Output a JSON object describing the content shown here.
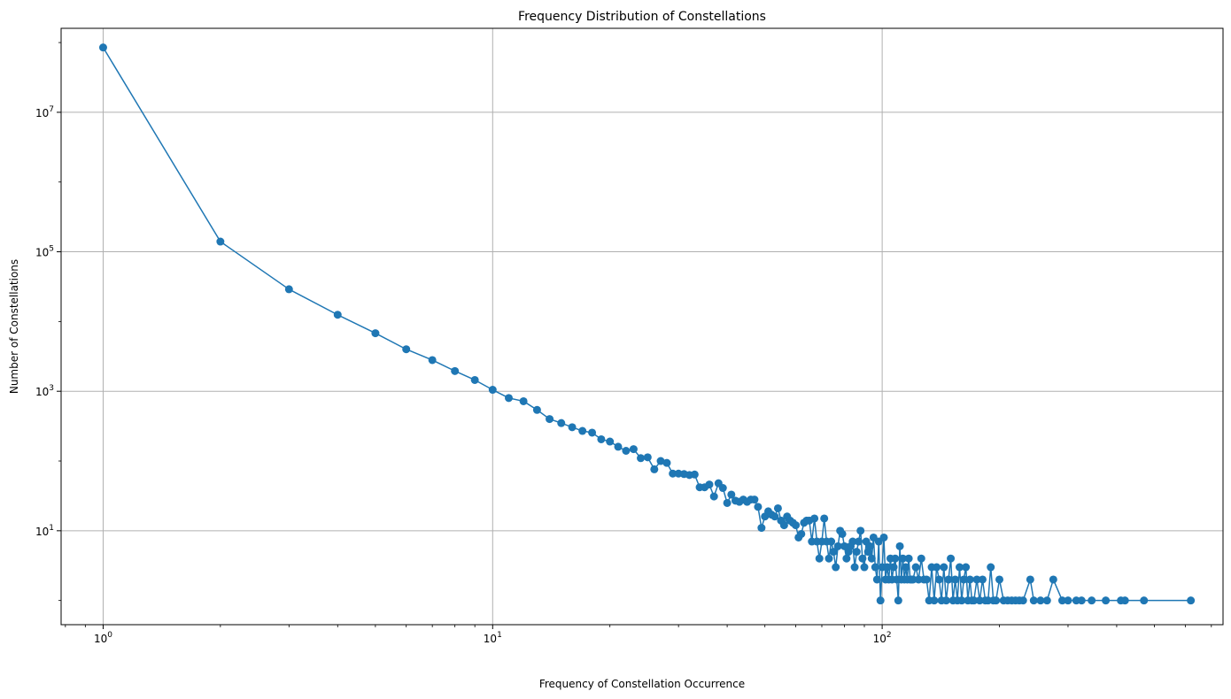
{
  "chart_data": {
    "type": "line",
    "title": "Frequency Distribution of Constellations",
    "xlabel": "Frequency of Constellation Occurrence",
    "ylabel": "Number of Constellations",
    "x_scale": "log",
    "y_scale": "log",
    "xlim": [
      0.78,
      750
    ],
    "ylim": [
      0.45,
      160000000
    ],
    "grid": true,
    "x_ticks": [
      {
        "value": 1,
        "base": "10",
        "exp": "0"
      },
      {
        "value": 10,
        "base": "10",
        "exp": "1"
      },
      {
        "value": 100,
        "base": "10",
        "exp": "2"
      }
    ],
    "y_ticks": [
      {
        "value": 10,
        "base": "10",
        "exp": "1"
      },
      {
        "value": 1000,
        "base": "10",
        "exp": "3"
      },
      {
        "value": 100000,
        "base": "10",
        "exp": "5"
      },
      {
        "value": 10000000,
        "base": "10",
        "exp": "7"
      }
    ],
    "colors": {
      "series": "#1f77b4",
      "grid": "#b0b0b0",
      "axes": "#000000"
    },
    "series": [
      {
        "marker": "circle",
        "points": [
          [
            1,
            85000000
          ],
          [
            2,
            140000
          ],
          [
            3,
            29000
          ],
          [
            4,
            12500
          ],
          [
            5,
            6800
          ],
          [
            6,
            4000
          ],
          [
            7,
            2800
          ],
          [
            8,
            1950
          ],
          [
            9,
            1450
          ],
          [
            10,
            1050
          ],
          [
            11,
            800
          ],
          [
            12,
            720
          ],
          [
            13,
            540
          ],
          [
            14,
            400
          ],
          [
            15,
            350
          ],
          [
            16,
            305
          ],
          [
            17,
            270
          ],
          [
            18,
            255
          ],
          [
            19,
            205
          ],
          [
            20,
            190
          ],
          [
            21,
            160
          ],
          [
            22,
            140
          ],
          [
            23,
            148
          ],
          [
            24,
            110
          ],
          [
            25,
            113
          ],
          [
            26,
            76
          ],
          [
            27,
            100
          ],
          [
            28,
            94
          ],
          [
            29,
            66
          ],
          [
            30,
            66
          ],
          [
            31,
            65
          ],
          [
            32,
            63
          ],
          [
            33,
            64
          ],
          [
            34,
            42
          ],
          [
            35,
            42
          ],
          [
            36,
            46
          ],
          [
            37,
            31
          ],
          [
            38,
            48
          ],
          [
            39,
            41
          ],
          [
            40,
            25
          ],
          [
            41,
            33
          ],
          [
            42,
            27
          ],
          [
            43,
            26
          ],
          [
            44,
            28
          ],
          [
            45,
            26
          ],
          [
            46,
            28
          ],
          [
            47,
            28
          ],
          [
            48,
            22
          ],
          [
            49,
            11
          ],
          [
            50,
            16
          ],
          [
            51,
            19
          ],
          [
            52,
            17
          ],
          [
            53,
            16
          ],
          [
            54,
            21
          ],
          [
            55,
            14
          ],
          [
            56,
            12
          ],
          [
            57,
            16
          ],
          [
            58,
            14
          ],
          [
            59,
            13
          ],
          [
            60,
            12
          ],
          [
            61,
            8
          ],
          [
            62,
            9
          ],
          [
            63,
            13
          ],
          [
            64,
            14
          ],
          [
            65,
            14
          ],
          [
            66,
            7
          ],
          [
            67,
            15
          ],
          [
            68,
            7
          ],
          [
            69,
            4
          ],
          [
            70,
            7
          ],
          [
            71,
            15
          ],
          [
            72,
            7
          ],
          [
            73,
            4
          ],
          [
            74,
            7
          ],
          [
            75,
            5
          ],
          [
            76,
            3
          ],
          [
            77,
            6
          ],
          [
            78,
            10
          ],
          [
            79,
            9
          ],
          [
            80,
            6
          ],
          [
            81,
            4
          ],
          [
            82,
            5
          ],
          [
            83,
            6
          ],
          [
            84,
            7
          ],
          [
            85,
            3
          ],
          [
            86,
            5
          ],
          [
            87,
            7
          ],
          [
            88,
            10
          ],
          [
            89,
            4
          ],
          [
            90,
            3
          ],
          [
            91,
            7
          ],
          [
            92,
            5
          ],
          [
            93,
            6
          ],
          [
            94,
            4
          ],
          [
            95,
            8
          ],
          [
            96,
            3
          ],
          [
            97,
            2
          ],
          [
            98,
            7
          ],
          [
            99,
            1
          ],
          [
            100,
            3
          ],
          [
            101,
            8
          ],
          [
            102,
            2
          ],
          [
            103,
            3
          ],
          [
            104,
            2
          ],
          [
            105,
            4
          ],
          [
            106,
            2
          ],
          [
            107,
            3
          ],
          [
            108,
            4
          ],
          [
            109,
            2
          ],
          [
            110,
            1
          ],
          [
            111,
            6
          ],
          [
            112,
            2
          ],
          [
            113,
            4
          ],
          [
            114,
            2
          ],
          [
            115,
            3
          ],
          [
            116,
            2
          ],
          [
            117,
            4
          ],
          [
            118,
            2
          ],
          [
            119,
            2
          ],
          [
            120,
            2
          ],
          [
            122,
            3
          ],
          [
            124,
            2
          ],
          [
            126,
            4
          ],
          [
            128,
            2
          ],
          [
            130,
            2
          ],
          [
            132,
            1
          ],
          [
            134,
            3
          ],
          [
            136,
            1
          ],
          [
            138,
            3
          ],
          [
            140,
            2
          ],
          [
            142,
            1
          ],
          [
            144,
            3
          ],
          [
            146,
            1
          ],
          [
            148,
            2
          ],
          [
            150,
            4
          ],
          [
            152,
            1
          ],
          [
            154,
            2
          ],
          [
            156,
            1
          ],
          [
            158,
            3
          ],
          [
            160,
            1
          ],
          [
            162,
            2
          ],
          [
            164,
            3
          ],
          [
            166,
            1
          ],
          [
            168,
            2
          ],
          [
            170,
            1
          ],
          [
            172,
            1
          ],
          [
            175,
            2
          ],
          [
            178,
            1
          ],
          [
            181,
            2
          ],
          [
            184,
            1
          ],
          [
            187,
            1
          ],
          [
            190,
            3
          ],
          [
            193,
            1
          ],
          [
            196,
            1
          ],
          [
            200,
            2
          ],
          [
            205,
            1
          ],
          [
            210,
            1
          ],
          [
            215,
            1
          ],
          [
            220,
            1
          ],
          [
            225,
            1
          ],
          [
            230,
            1
          ],
          [
            240,
            2
          ],
          [
            245,
            1
          ],
          [
            255,
            1
          ],
          [
            265,
            1
          ],
          [
            275,
            2
          ],
          [
            290,
            1
          ],
          [
            300,
            1
          ],
          [
            315,
            1
          ],
          [
            325,
            1
          ],
          [
            345,
            1
          ],
          [
            375,
            1
          ],
          [
            410,
            1
          ],
          [
            420,
            1
          ],
          [
            470,
            1
          ],
          [
            620,
            1
          ]
        ]
      }
    ]
  }
}
